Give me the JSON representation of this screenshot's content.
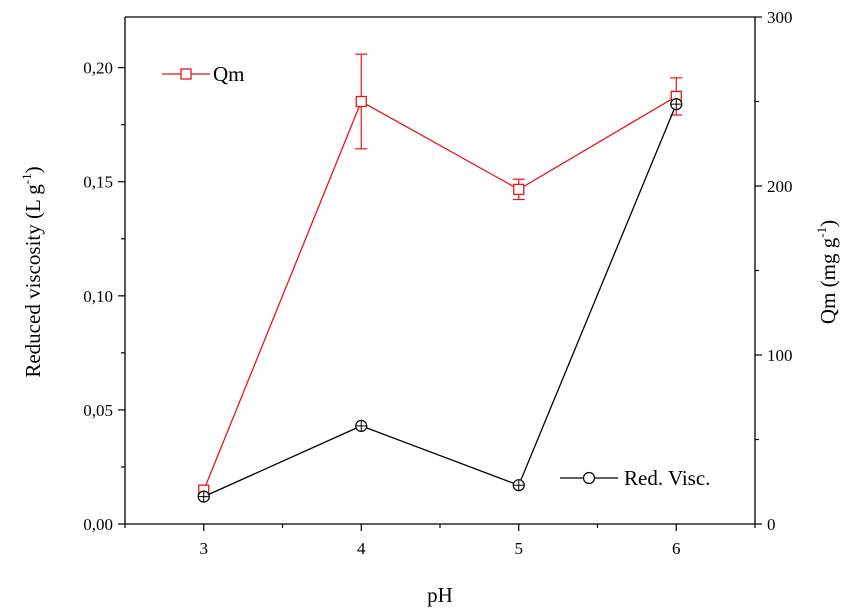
{
  "chart_data": {
    "type": "line",
    "x": [
      3,
      4,
      5,
      6
    ],
    "xlabel": "pH",
    "xlim": [
      2.5,
      6.5
    ],
    "xticks": [
      "3",
      "4",
      "5",
      "6"
    ],
    "y_left": {
      "label_main": "Reduced viscosity (L g",
      "label_sup": "-1",
      "label_end": ")",
      "ylim": [
        0,
        0.2222
      ],
      "ticks": [
        0,
        0.05,
        0.1,
        0.15,
        0.2
      ],
      "tick_labels": [
        "0,00",
        "0,05",
        "0,10",
        "0,15",
        "0,20"
      ]
    },
    "y_right": {
      "label_main": "Qm (mg g",
      "label_sup": "-1",
      "label_end": ")",
      "ylim": [
        0,
        300
      ],
      "ticks": [
        0,
        100,
        200,
        300
      ],
      "tick_labels": [
        "0",
        "100",
        "200",
        "300"
      ]
    },
    "series": [
      {
        "name": "Qm",
        "axis": "right",
        "color": "#e8141c",
        "marker": "square",
        "y": [
          20,
          250,
          198,
          253
        ],
        "err": [
          0,
          28,
          6,
          11
        ]
      },
      {
        "name": "Red. Visc.",
        "axis": "left",
        "color": "#000000",
        "marker": "circle-cross",
        "y": [
          0.012,
          0.043,
          0.017,
          0.184
        ],
        "err": [
          0,
          0,
          0,
          0
        ]
      }
    ],
    "legend": [
      {
        "label": "Qm",
        "placement": "top-left"
      },
      {
        "label": "Red. Visc.",
        "placement": "bottom-right"
      }
    ]
  }
}
